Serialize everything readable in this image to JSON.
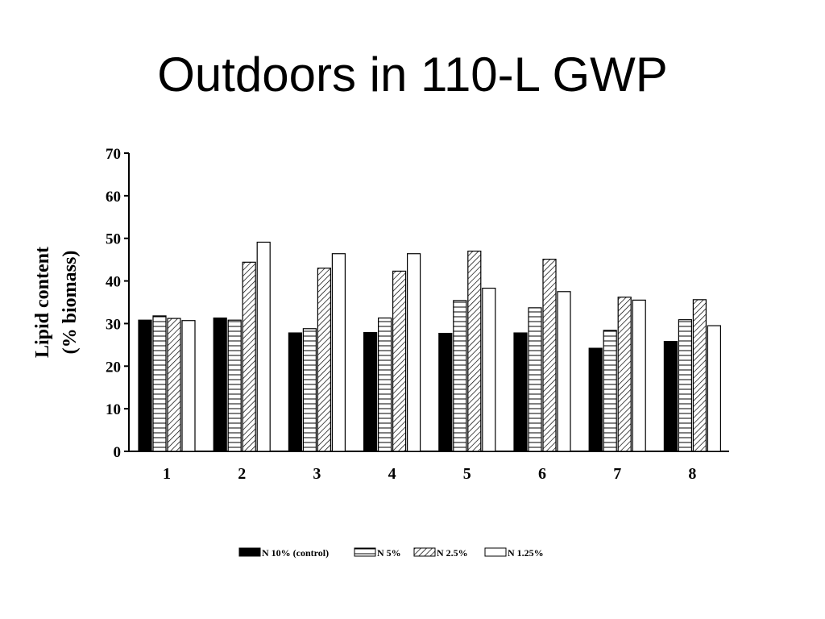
{
  "slide": {
    "title": "Outdoors in 110-L GWP"
  },
  "chart_data": {
    "type": "bar",
    "title": "",
    "xlabel": "",
    "ylabel_lines": [
      "Lipid content",
      "(% biomass)"
    ],
    "categories": [
      "1",
      "2",
      "3",
      "4",
      "5",
      "6",
      "7",
      "8"
    ],
    "ylim": [
      0,
      70
    ],
    "yticks": [
      0,
      10,
      20,
      30,
      40,
      50,
      60,
      70
    ],
    "grid": false,
    "legend_position": "bottom",
    "series": [
      {
        "name": "N 10% (control)",
        "pattern": "solid-black",
        "values": [
          30.8,
          31.3,
          27.8,
          27.9,
          27.7,
          27.8,
          24.2,
          25.8
        ]
      },
      {
        "name": "N 5%",
        "pattern": "horizontal-lines",
        "values": [
          31.8,
          30.8,
          28.8,
          31.3,
          35.4,
          33.7,
          28.4,
          30.9
        ]
      },
      {
        "name": "N 2.5%",
        "pattern": "diagonal-hatch",
        "values": [
          31.2,
          44.4,
          43.0,
          42.3,
          47.0,
          45.1,
          36.2,
          35.6
        ]
      },
      {
        "name": "N 1.25%",
        "pattern": "white",
        "values": [
          30.7,
          49.1,
          46.4,
          46.4,
          38.3,
          37.5,
          35.5,
          29.5
        ]
      }
    ]
  }
}
